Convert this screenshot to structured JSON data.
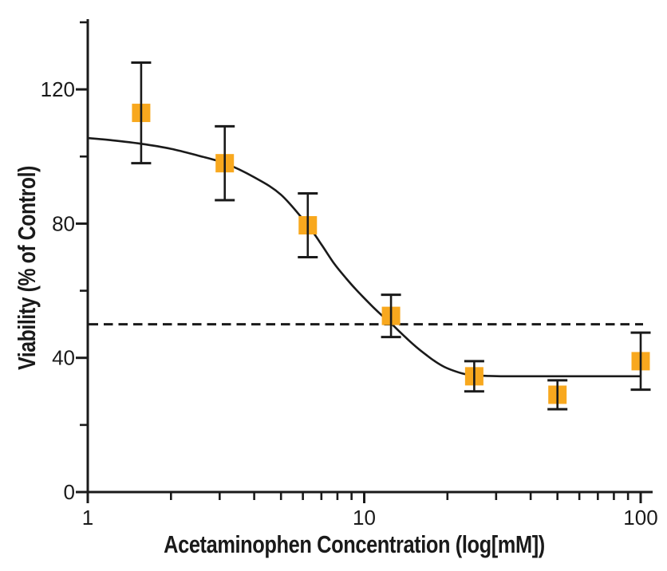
{
  "chart_data": {
    "type": "scatter",
    "title": "",
    "xlabel": "Acetaminophen Concentration (log[mM])",
    "ylabel": "Viability (% of Control)",
    "x_scale": "log",
    "xlim": [
      1,
      110
    ],
    "ylim": [
      0,
      141
    ],
    "x_major_ticks": [
      1,
      10,
      100
    ],
    "x_major_tick_labels": [
      "1",
      "10",
      "100"
    ],
    "x_minor_ticks": [
      2,
      3,
      4,
      5,
      6,
      7,
      8,
      9,
      20,
      30,
      40,
      50,
      60,
      70,
      80,
      90
    ],
    "y_major_ticks": [
      0,
      40,
      80,
      120
    ],
    "y_major_tick_labels": [
      "0",
      "40",
      "80",
      "120"
    ],
    "y_minor_ticks": [
      20,
      60,
      100,
      140
    ],
    "grid": false,
    "legend": "none",
    "colors": {
      "marker": "#F8A81E",
      "line": "#1a1a1a",
      "text": "#1a1a1a",
      "background": "#ffffff"
    },
    "series": [
      {
        "name": "viability-vs-concentration",
        "marker": "square",
        "x": [
          1.56,
          3.13,
          6.25,
          12.5,
          25,
          50,
          100
        ],
        "y": [
          113,
          98,
          79.5,
          52.5,
          34.5,
          29,
          39
        ],
        "y_err": [
          15,
          11,
          9.5,
          6.3,
          4.5,
          4.3,
          8.5
        ]
      }
    ],
    "fit_curve": {
      "name": "sigmoidal-dose-response-fit",
      "top_plateau": 105.5,
      "bottom_plateau": 34.5,
      "points": [
        [
          1,
          105.5
        ],
        [
          1.2,
          104.9
        ],
        [
          1.56,
          103.8
        ],
        [
          2,
          102.3
        ],
        [
          2.5,
          100.3
        ],
        [
          3.13,
          98
        ],
        [
          4,
          93.8
        ],
        [
          5,
          88.6
        ],
        [
          6.25,
          79.5
        ],
        [
          7,
          73.8
        ],
        [
          7.8,
          68
        ],
        [
          8.6,
          63.7
        ],
        [
          9.3,
          60.5
        ],
        [
          10,
          57.8
        ],
        [
          10.8,
          55
        ],
        [
          11.6,
          52.6
        ],
        [
          12.5,
          50.3
        ],
        [
          13.5,
          47.6
        ],
        [
          14.5,
          45.2
        ],
        [
          15.6,
          42.9
        ],
        [
          16.8,
          40.8
        ],
        [
          18,
          39
        ],
        [
          19.5,
          37.3
        ],
        [
          21,
          36.2
        ],
        [
          23,
          35.2
        ],
        [
          25,
          34.8
        ],
        [
          28,
          34.6
        ],
        [
          32,
          34.5
        ],
        [
          40,
          34.5
        ],
        [
          50,
          34.5
        ],
        [
          65,
          34.5
        ],
        [
          100,
          34.5
        ]
      ]
    },
    "reference_line": {
      "y": 50,
      "style": "dashed"
    }
  }
}
